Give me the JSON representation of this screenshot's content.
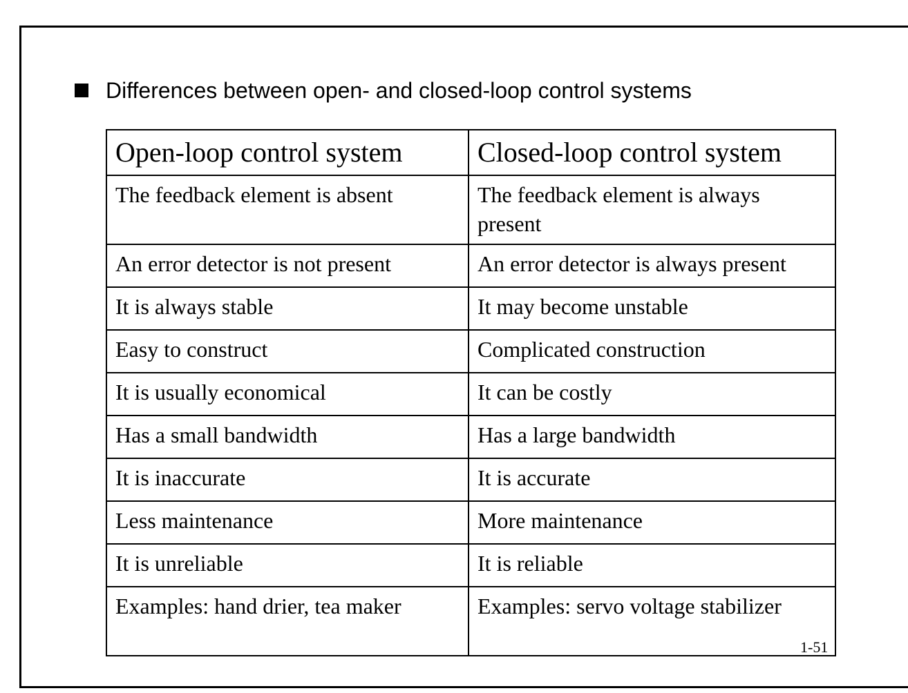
{
  "slide": {
    "heading": "Differences between open- and closed-loop control systems",
    "bullet_icon": "square-bullet-icon",
    "page_number": "1-51"
  },
  "table": {
    "headers": [
      "Open-loop control system",
      "Closed-loop control system"
    ],
    "rows": [
      [
        "The feedback element is absent",
        "The feedback element is always present"
      ],
      [
        "An error detector is not present",
        "An error detector is always present"
      ],
      [
        "It is always stable",
        "It may become unstable"
      ],
      [
        "Easy to construct",
        "Complicated construction"
      ],
      [
        "It is usually economical",
        "It can be costly"
      ],
      [
        "Has a small bandwidth",
        "Has a large bandwidth"
      ],
      [
        "It is inaccurate",
        "It is accurate"
      ],
      [
        "Less maintenance",
        "More maintenance"
      ],
      [
        "It is unreliable",
        "It is reliable"
      ],
      [
        "Examples: hand drier, tea maker",
        "Examples: servo voltage stabilizer"
      ]
    ]
  }
}
